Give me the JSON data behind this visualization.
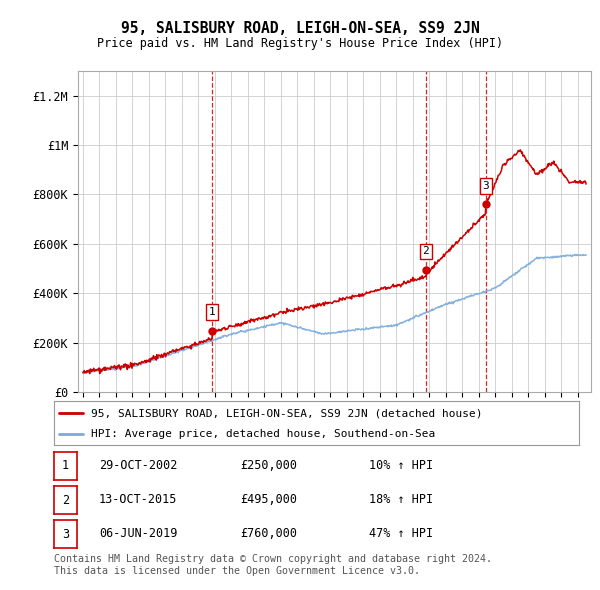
{
  "title": "95, SALISBURY ROAD, LEIGH-ON-SEA, SS9 2JN",
  "subtitle": "Price paid vs. HM Land Registry's House Price Index (HPI)",
  "ylabel_ticks": [
    "£0",
    "£200K",
    "£400K",
    "£600K",
    "£800K",
    "£1M",
    "£1.2M"
  ],
  "ytick_values": [
    0,
    200000,
    400000,
    600000,
    800000,
    1000000,
    1200000
  ],
  "ylim": [
    0,
    1300000
  ],
  "xlim_start": 1994.7,
  "xlim_end": 2025.8,
  "sale_points": [
    {
      "year": 2002.83,
      "price": 250000,
      "label": "1"
    },
    {
      "year": 2015.78,
      "price": 495000,
      "label": "2"
    },
    {
      "year": 2019.43,
      "price": 760000,
      "label": "3"
    }
  ],
  "sale_vlines": [
    2002.83,
    2015.78,
    2019.43
  ],
  "legend_red_label": "95, SALISBURY ROAD, LEIGH-ON-SEA, SS9 2JN (detached house)",
  "legend_blue_label": "HPI: Average price, detached house, Southend-on-Sea",
  "table_rows": [
    {
      "num": "1",
      "date": "29-OCT-2002",
      "price": "£250,000",
      "change": "10% ↑ HPI"
    },
    {
      "num": "2",
      "date": "13-OCT-2015",
      "price": "£495,000",
      "change": "18% ↑ HPI"
    },
    {
      "num": "3",
      "date": "06-JUN-2019",
      "price": "£760,000",
      "change": "47% ↑ HPI"
    }
  ],
  "footer": "Contains HM Land Registry data © Crown copyright and database right 2024.\nThis data is licensed under the Open Government Licence v3.0.",
  "red_color": "#cc0000",
  "blue_color": "#7aaadd",
  "vline_color": "#cc0000",
  "grid_color": "#cccccc",
  "bg_color": "#ffffff"
}
